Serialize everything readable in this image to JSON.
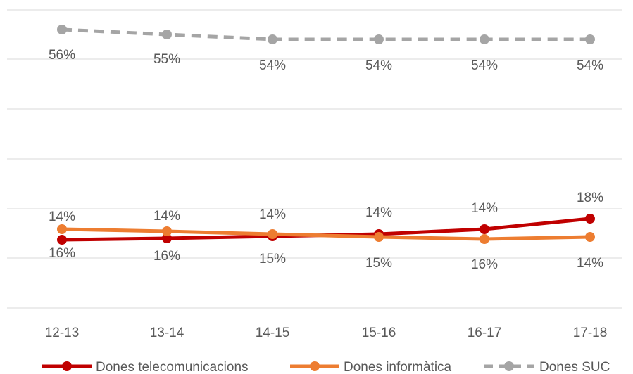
{
  "chart_data": {
    "type": "line",
    "categories": [
      "12-13",
      "13-14",
      "14-15",
      "15-16",
      "16-17",
      "17-18"
    ],
    "grid": true,
    "legend_position": "bottom",
    "title": "",
    "xlabel": "",
    "ylabel": "",
    "series": [
      {
        "name": "Dones telecomunicacions",
        "values": [
          16,
          16,
          15,
          15,
          16,
          18
        ],
        "labels": [
          "16%",
          "16%",
          "15%",
          "15%",
          "16%",
          "18%"
        ],
        "color": "#C00000",
        "dashed": false
      },
      {
        "name": "Dones informàtica",
        "values": [
          14,
          14,
          14,
          14,
          14,
          14
        ],
        "labels": [
          "14%",
          "14%",
          "14%",
          "14%",
          "14%",
          "14%"
        ],
        "color": "#ED7D31",
        "dashed": false
      },
      {
        "name": "Dones SUC",
        "values": [
          56,
          55,
          54,
          54,
          54,
          54
        ],
        "labels": [
          "56%",
          "55%",
          "54%",
          "54%",
          "54%",
          "54%"
        ],
        "color": "#A5A5A5",
        "dashed": true
      }
    ]
  }
}
